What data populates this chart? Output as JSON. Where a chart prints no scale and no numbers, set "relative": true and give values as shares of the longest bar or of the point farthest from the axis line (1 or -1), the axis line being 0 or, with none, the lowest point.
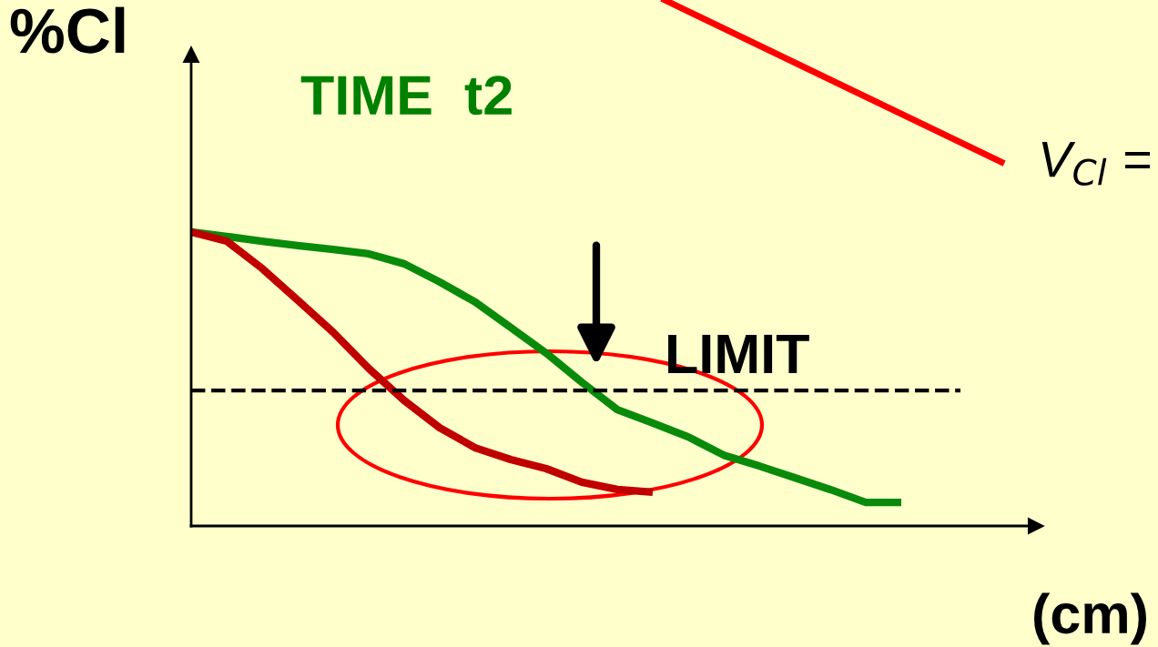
{
  "chart_data": {
    "type": "line",
    "title": "TIME  t2",
    "ylabel": "%Cl",
    "xlabel": "(cm)",
    "relative": true,
    "grid": false,
    "line_style": "solid",
    "marker": "none",
    "categories": [
      null,
      null,
      null,
      null,
      null,
      null,
      null,
      null,
      null,
      null,
      null,
      null,
      null,
      null,
      null,
      null,
      null,
      null,
      null,
      null,
      null
    ],
    "series": [
      {
        "color": "#0a8a0a",
        "values": [
          1.0,
          0.985,
          0.969,
          0.954,
          0.941,
          0.926,
          0.892,
          0.83,
          0.762,
          0.675,
          0.588,
          0.489,
          0.396,
          0.35,
          0.303,
          0.241,
          0.204,
          0.164,
          0.124,
          0.08,
          0.08
        ]
      },
      {
        "color": "#c00000",
        "values": [
          1.0,
          0.969,
          0.876,
          0.768,
          0.659,
          0.536,
          0.427,
          0.334,
          0.266,
          0.226,
          0.195,
          0.149,
          0.124,
          0.115,
          null,
          null,
          null,
          null,
          null,
          null,
          null
        ]
      }
    ],
    "ref_lines": [
      {
        "axis": "y",
        "value": 0.461,
        "label": "LIMIT",
        "color": "#000000",
        "line_style": "dashed"
      }
    ],
    "annotations": [
      "V$_{Cl}$ ="
    ]
  }
}
